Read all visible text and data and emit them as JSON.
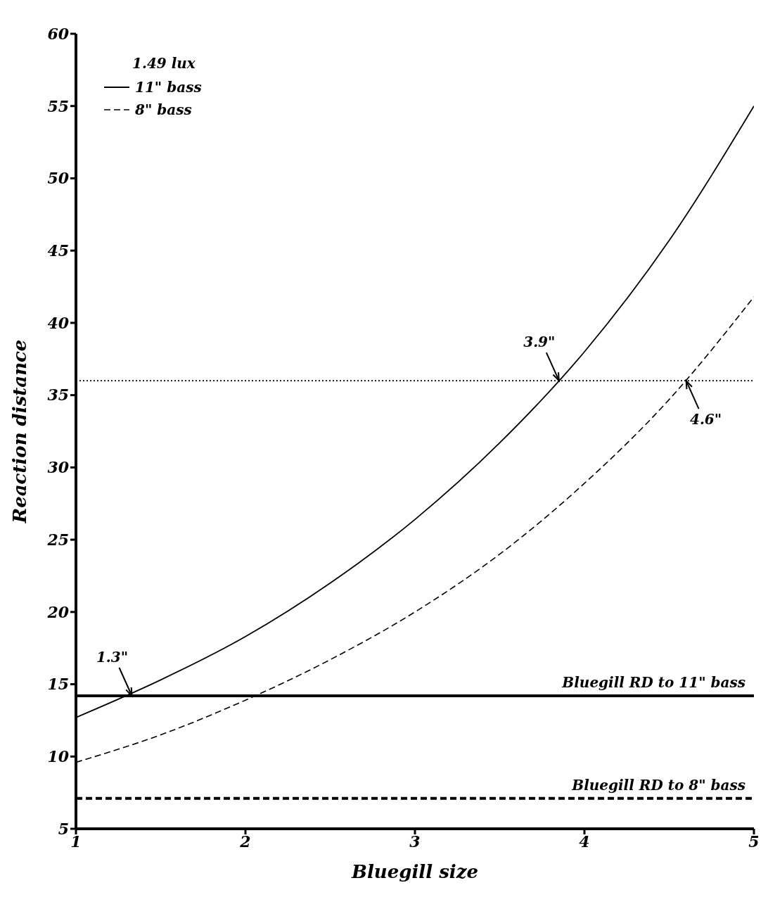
{
  "chart_data": {
    "type": "line",
    "xlabel": "Bluegill size",
    "ylabel": "Reaction distance",
    "legend_title": "1.49 lux",
    "legend": "top left",
    "x": [
      1,
      1.5,
      2,
      2.5,
      3,
      3.5,
      4,
      4.5,
      5
    ],
    "series": [
      {
        "name": "11\" bass",
        "color": "#000000",
        "line_style": "solid",
        "values": [
          12.7,
          15.3,
          18.3,
          22.0,
          26.4,
          31.7,
          38.0,
          45.7,
          55.0
        ]
      },
      {
        "name": "8\" bass",
        "color": "#000000",
        "line_style": "dashed",
        "values": [
          9.6,
          11.5,
          13.9,
          16.7,
          20.0,
          24.0,
          28.9,
          34.7,
          41.8
        ]
      }
    ],
    "xlim": [
      1,
      5
    ],
    "xticks": [
      1,
      2,
      3,
      4,
      5
    ],
    "ylim": [
      5,
      60
    ],
    "yticks": [
      5,
      10,
      15,
      20,
      25,
      30,
      35,
      40,
      45,
      50,
      55,
      60
    ],
    "ref_lines": [
      {
        "axis": "y",
        "value": 14.2,
        "label": "Bluegill RD to 11\" bass",
        "color": "#000000",
        "line_style": "solid"
      },
      {
        "axis": "y",
        "value": 7.1,
        "label": "Bluegill RD to 8\" bass",
        "color": "#000000",
        "line_style": "dashed"
      },
      {
        "axis": "y",
        "value": 36,
        "label": null,
        "color": "#000000",
        "line_style": "dotted"
      }
    ],
    "annotations": [
      {
        "text": "1.3\"",
        "x": 1.33,
        "y": 14.2
      },
      {
        "text": "3.9\"",
        "x": 3.85,
        "y": 36
      },
      {
        "text": "4.6\"",
        "x": 4.6,
        "y": 36
      }
    ]
  }
}
